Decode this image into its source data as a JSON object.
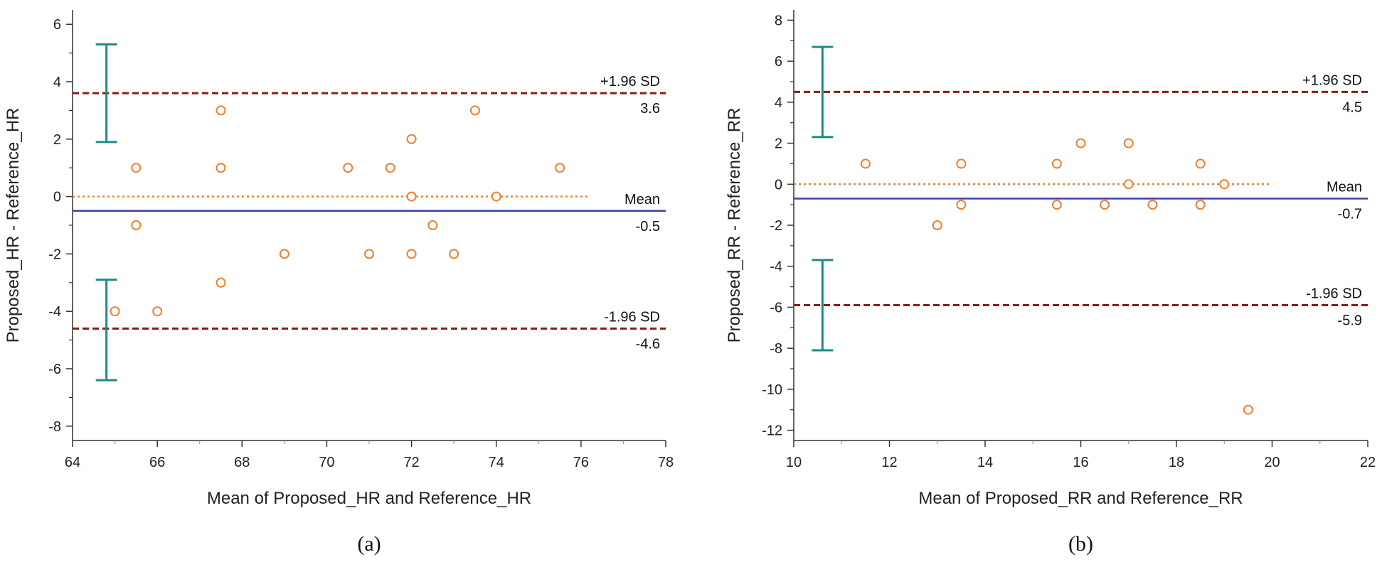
{
  "chart_data": [
    {
      "type": "scatter",
      "caption": "(a)",
      "xlabel": "Mean of Proposed_HR and Reference_HR",
      "ylabel": "Proposed_HR - Reference_HR",
      "xlim": [
        64,
        78
      ],
      "ylim": [
        -8.5,
        6.5
      ],
      "xticks": [
        64,
        66,
        68,
        70,
        72,
        74,
        76,
        78
      ],
      "yticks": [
        -8,
        -6,
        -4,
        -2,
        0,
        2,
        4,
        6
      ],
      "points": [
        {
          "x": 65.0,
          "y": -4
        },
        {
          "x": 65.5,
          "y": 1
        },
        {
          "x": 65.5,
          "y": -1
        },
        {
          "x": 66.0,
          "y": -4
        },
        {
          "x": 67.5,
          "y": 3
        },
        {
          "x": 67.5,
          "y": 1
        },
        {
          "x": 67.5,
          "y": -3
        },
        {
          "x": 69.0,
          "y": -2
        },
        {
          "x": 70.5,
          "y": 1
        },
        {
          "x": 71.0,
          "y": -2
        },
        {
          "x": 71.5,
          "y": 1
        },
        {
          "x": 72.0,
          "y": 2
        },
        {
          "x": 72.0,
          "y": 0
        },
        {
          "x": 72.0,
          "y": -2
        },
        {
          "x": 72.5,
          "y": -1
        },
        {
          "x": 73.0,
          "y": -2
        },
        {
          "x": 73.5,
          "y": 3
        },
        {
          "x": 74.0,
          "y": 0
        },
        {
          "x": 75.5,
          "y": 1
        }
      ],
      "zero_line": {
        "y": 0,
        "x_end": 76.2
      },
      "mean": {
        "value": -0.5,
        "label": "Mean",
        "value_text": "-0.5"
      },
      "upper_loa": {
        "value": 3.6,
        "label": "+1.96 SD",
        "value_text": "3.6"
      },
      "lower_loa": {
        "value": -4.6,
        "label": "-1.96 SD",
        "value_text": "-4.6"
      },
      "ci_x": 64.8,
      "upper_ci": [
        1.9,
        5.3
      ],
      "lower_ci": [
        -6.4,
        -2.9
      ],
      "colors": {
        "points": "#f07f2a",
        "mean": "#3f3fb4",
        "loa": "#8b1a1a",
        "zero": "#f07f2a",
        "ci": "#1f8a8a"
      }
    },
    {
      "type": "scatter",
      "caption": "(b)",
      "xlabel": "Mean of Proposed_RR and Reference_RR",
      "ylabel": "Proposed_RR - Reference_RR",
      "xlim": [
        10,
        22
      ],
      "ylim": [
        -12.5,
        8.5
      ],
      "xticks": [
        10,
        12,
        14,
        16,
        18,
        20,
        22
      ],
      "yticks": [
        -12,
        -10,
        -8,
        -6,
        -4,
        -2,
        0,
        2,
        4,
        6,
        8
      ],
      "points": [
        {
          "x": 11.5,
          "y": 1
        },
        {
          "x": 13.0,
          "y": -2
        },
        {
          "x": 13.5,
          "y": 1
        },
        {
          "x": 13.5,
          "y": -1
        },
        {
          "x": 15.5,
          "y": 1
        },
        {
          "x": 15.5,
          "y": -1
        },
        {
          "x": 16.0,
          "y": 2
        },
        {
          "x": 16.5,
          "y": -1
        },
        {
          "x": 17.0,
          "y": 2
        },
        {
          "x": 17.0,
          "y": 0
        },
        {
          "x": 17.5,
          "y": -1
        },
        {
          "x": 18.5,
          "y": 1
        },
        {
          "x": 18.5,
          "y": -1
        },
        {
          "x": 19.0,
          "y": 0
        },
        {
          "x": 19.5,
          "y": -11
        }
      ],
      "zero_line": {
        "y": 0,
        "x_end": 20.0
      },
      "mean": {
        "value": -0.7,
        "label": "Mean",
        "value_text": "-0.7"
      },
      "upper_loa": {
        "value": 4.5,
        "label": "+1.96 SD",
        "value_text": "4.5"
      },
      "lower_loa": {
        "value": -5.9,
        "label": "-1.96 SD",
        "value_text": "-5.9"
      },
      "ci_x": 10.6,
      "upper_ci": [
        2.3,
        6.7
      ],
      "lower_ci": [
        -8.1,
        -3.7
      ],
      "colors": {
        "points": "#f07f2a",
        "mean": "#3f3fb4",
        "loa": "#8b1a1a",
        "zero": "#f07f2a",
        "ci": "#1f8a8a"
      }
    }
  ]
}
